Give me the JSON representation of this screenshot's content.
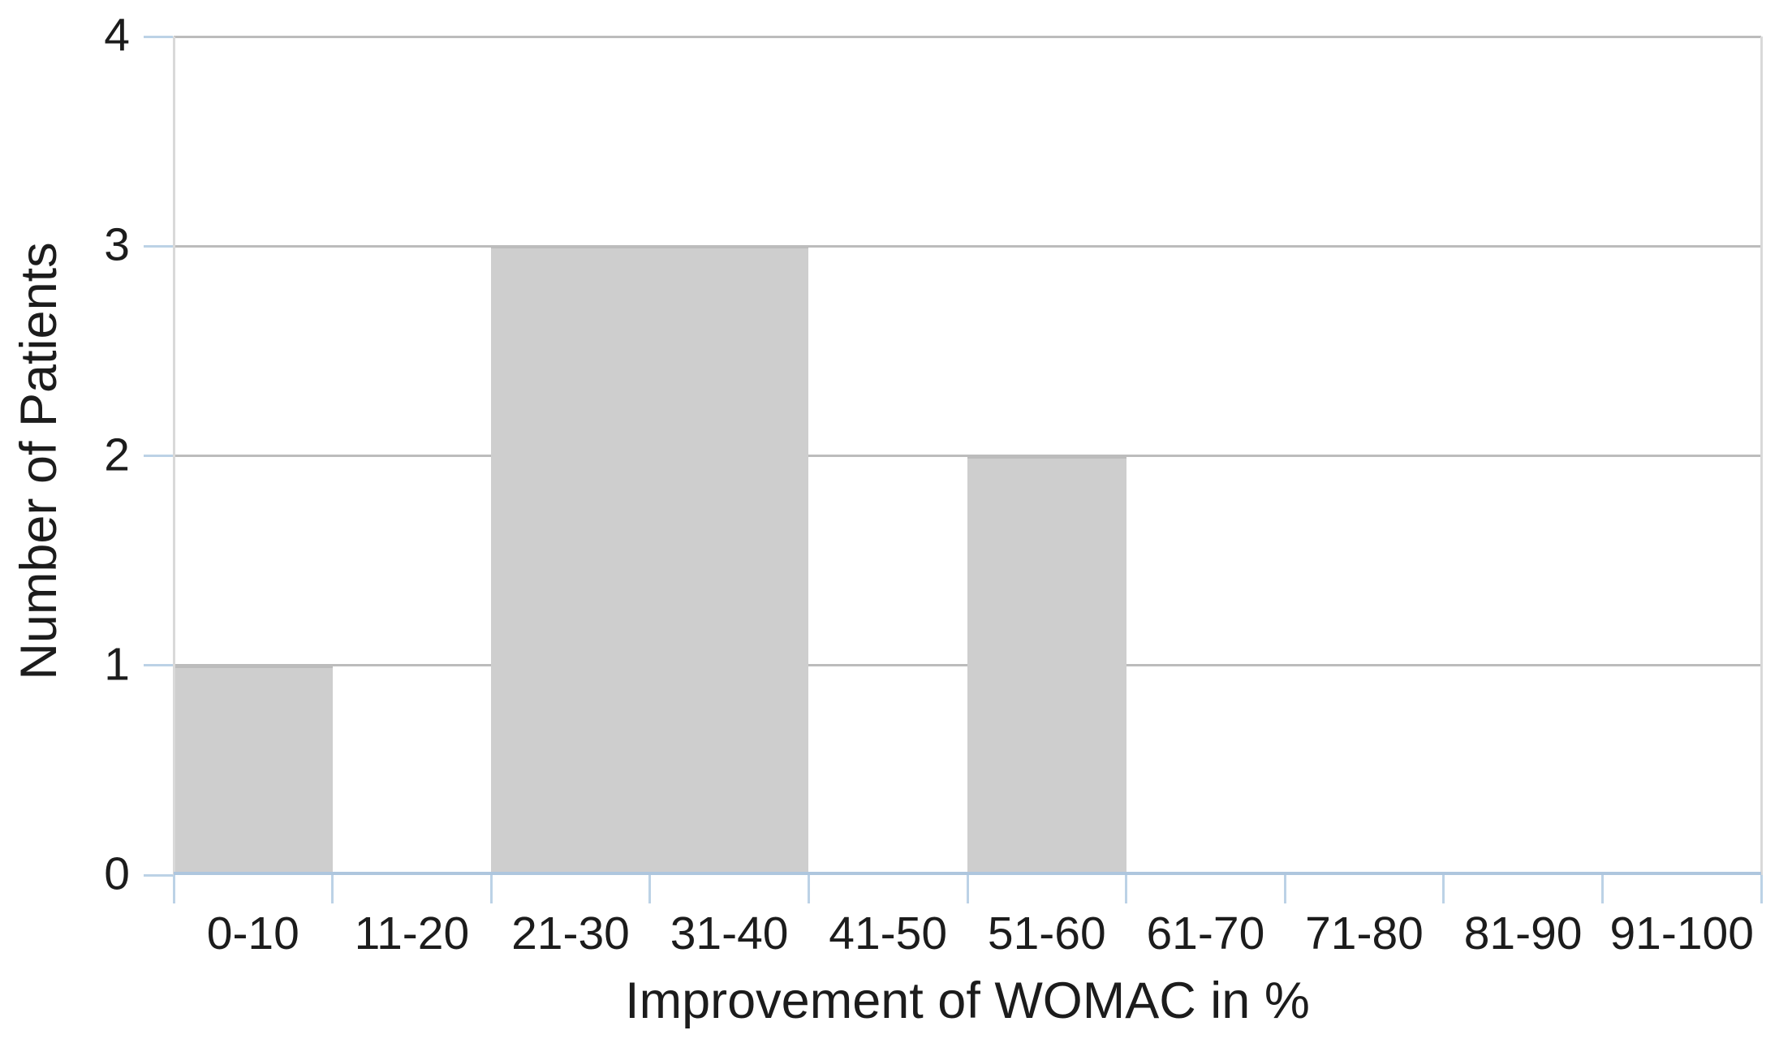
{
  "chart_data": {
    "type": "bar",
    "title": "",
    "xlabel": "Improvement of WOMAC in %",
    "ylabel": "Number of Patients",
    "categories": [
      "0-10",
      "11-20",
      "21-30",
      "31-40",
      "41-50",
      "51-60",
      "61-70",
      "71-80",
      "81-90",
      "91-100"
    ],
    "values": [
      1,
      0,
      3,
      3,
      0,
      2,
      0,
      0,
      0,
      0
    ],
    "ylim": [
      0,
      4
    ],
    "yticks": [
      "0",
      "1",
      "2",
      "3",
      "4"
    ],
    "grid": "horizontal gridlines on",
    "legend_position": "none",
    "bar_gap": "none (bars fill full category width; adjacent equal bars appear merged)",
    "colors": {
      "bar_fill": "#cecece",
      "gridline": "#bcbcbc",
      "axis_line_blue": "#aec6de",
      "tick_blue": "#bcd2e6",
      "frame_gray": "#d9d9d9",
      "text": "#1c1c1c",
      "background": "#ffffff"
    }
  }
}
